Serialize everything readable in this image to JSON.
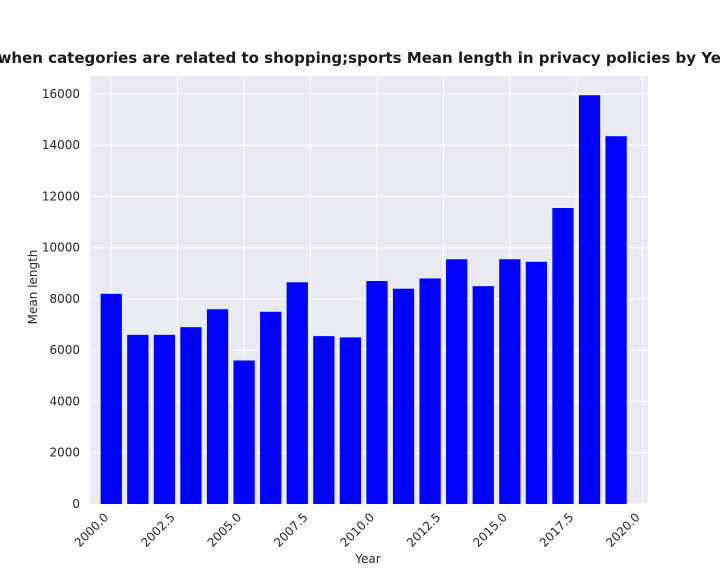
{
  "chart_data": {
    "type": "bar",
    "title": "when categories are related to shopping;sports Mean length in privacy policies by Year",
    "xlabel": "Year",
    "ylabel": "Mean length",
    "x": [
      2000,
      2001,
      2002,
      2003,
      2004,
      2005,
      2006,
      2007,
      2008,
      2009,
      2010,
      2011,
      2012,
      2013,
      2014,
      2015,
      2016,
      2017,
      2018,
      2019
    ],
    "values": [
      8200,
      6600,
      6600,
      6900,
      7600,
      5600,
      7500,
      8650,
      6550,
      6500,
      8700,
      8400,
      8800,
      9550,
      8500,
      9550,
      9450,
      11550,
      15950,
      14350
    ],
    "xlim": [
      1999.2,
      2020.2
    ],
    "ylim": [
      0,
      16700
    ],
    "x_ticks": [
      "2000.0",
      "2002.5",
      "2005.0",
      "2007.5",
      "2010.0",
      "2012.5",
      "2015.0",
      "2017.5",
      "2020.0"
    ],
    "y_ticks": [
      "0",
      "2000",
      "4000",
      "6000",
      "8000",
      "10000",
      "12000",
      "14000",
      "16000"
    ],
    "bar_color": "#0000ff",
    "background_color": "#eaeaf2",
    "grid": true
  }
}
